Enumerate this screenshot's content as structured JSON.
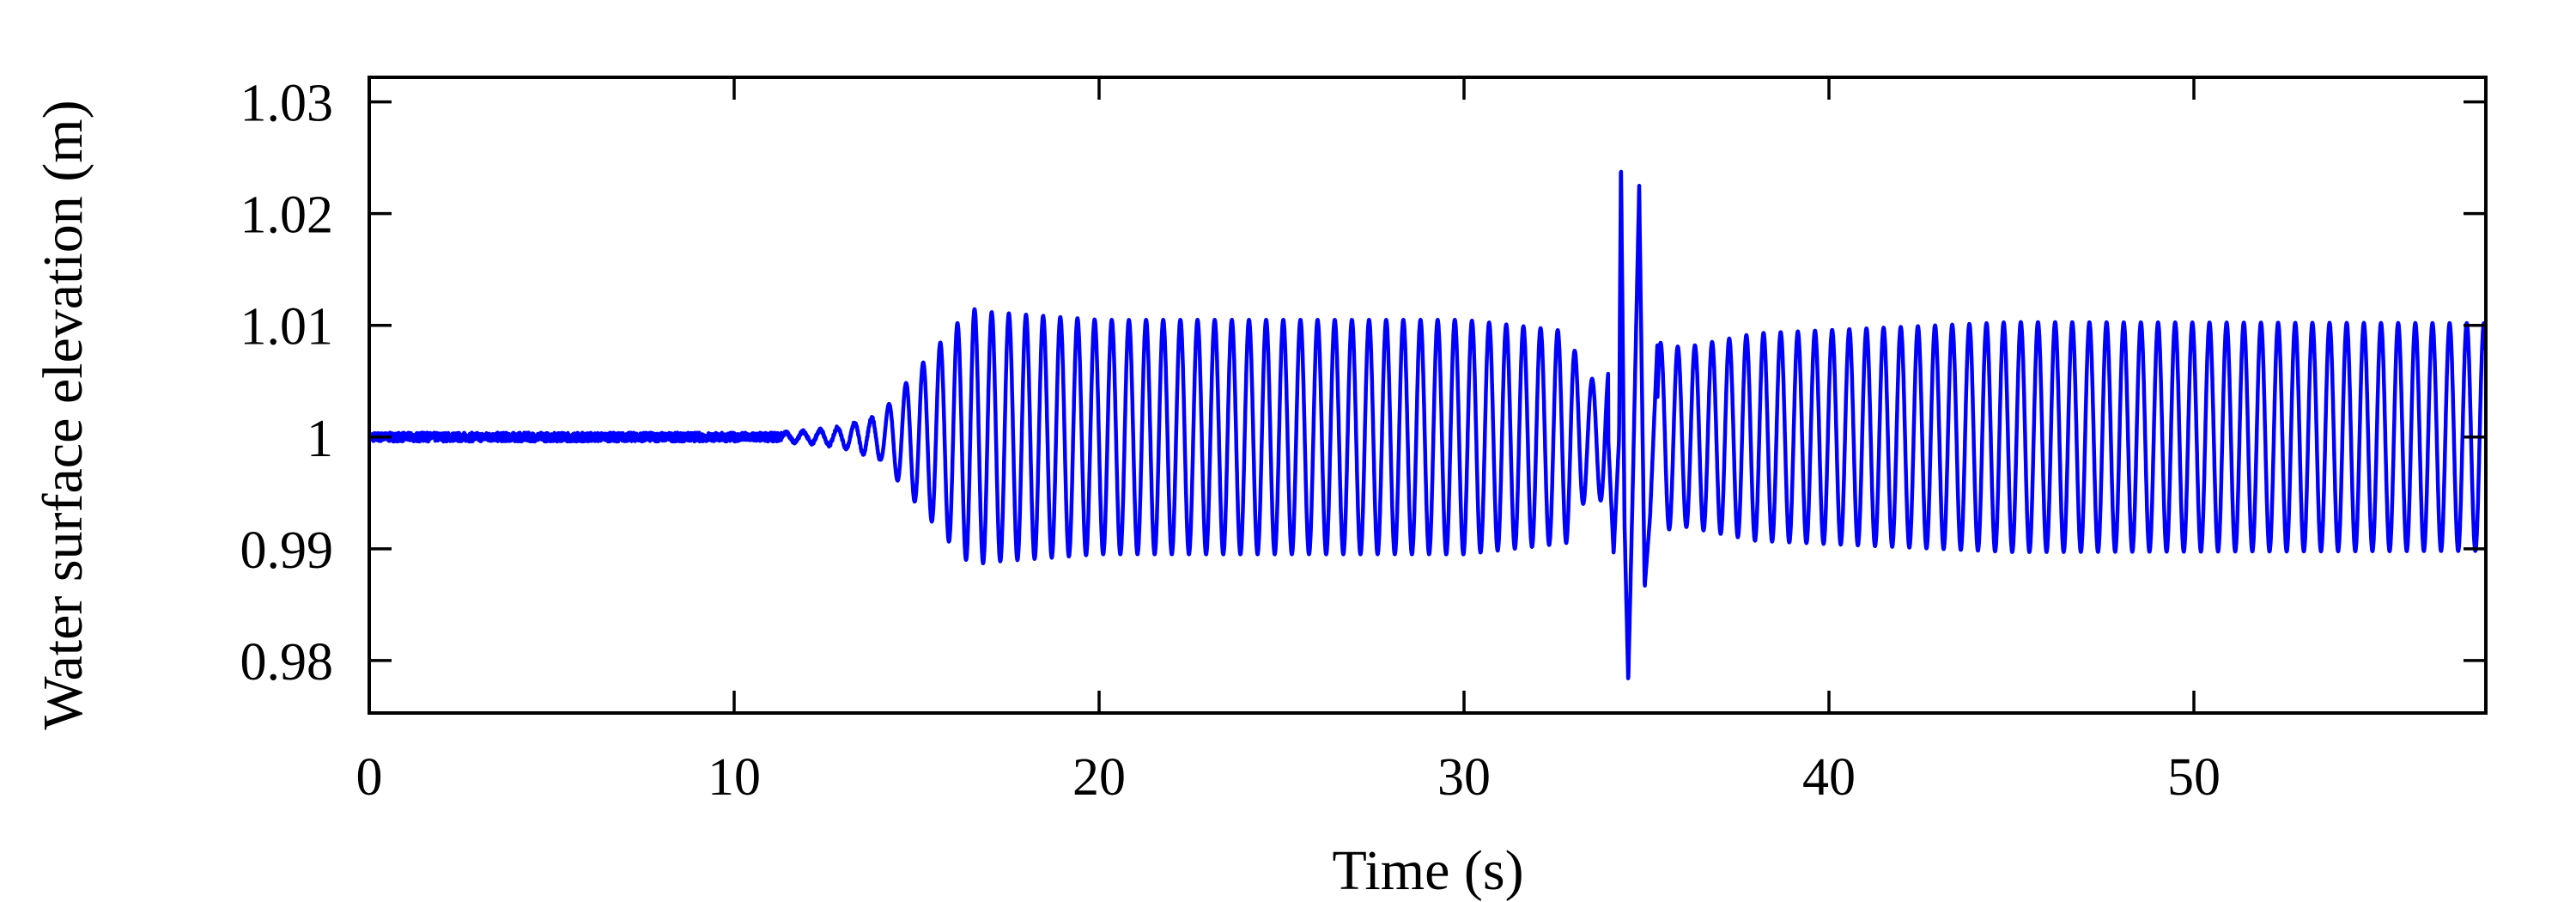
{
  "chart_data": {
    "type": "line",
    "title": "",
    "xlabel": "Time (s)",
    "ylabel": "Water surface elevation (m)",
    "xlim": [
      0,
      58
    ],
    "ylim": [
      0.9753,
      1.0322
    ],
    "xticks": [
      0,
      10,
      20,
      30,
      40,
      50
    ],
    "xtick_labels": [
      "0",
      "10",
      "20",
      "30",
      "40",
      "50"
    ],
    "yticks": [
      0.98,
      0.99,
      1.0,
      1.01,
      1.02,
      1.03
    ],
    "ytick_labels": [
      "0.98",
      "0.99",
      "1",
      "1.01",
      "1.02",
      "1.03"
    ],
    "grid": false,
    "legend": "none",
    "series": [
      {
        "color": "#0000ff",
        "description": "oscillating water surface elevation; small noise until ~11 s, growing waves ~12-16 s, steady oscillation ~0.99-1.011, burst to 1.025/0.978 near 34.3 s, then steady oscillation to 58 s",
        "x": [
          0,
          11,
          12,
          13,
          14,
          15,
          16,
          16.5,
          17,
          20,
          25,
          30,
          32.8,
          33.6,
          34.1,
          34.3,
          34.5,
          34.8,
          35.2,
          36,
          38,
          40,
          45,
          50,
          55,
          58
        ],
        "y": [
          1.0,
          1.0,
          1.0003,
          1.0008,
          1.002,
          1.006,
          1.0098,
          1.012,
          1.0115,
          1.011,
          1.011,
          1.011,
          1.0105,
          1.006,
          1.009,
          1.025,
          0.978,
          1.0225,
          0.9865,
          1.0085,
          1.009,
          1.0095,
          1.0105,
          1.0105,
          1.011,
          1.0105
        ]
      }
    ]
  }
}
